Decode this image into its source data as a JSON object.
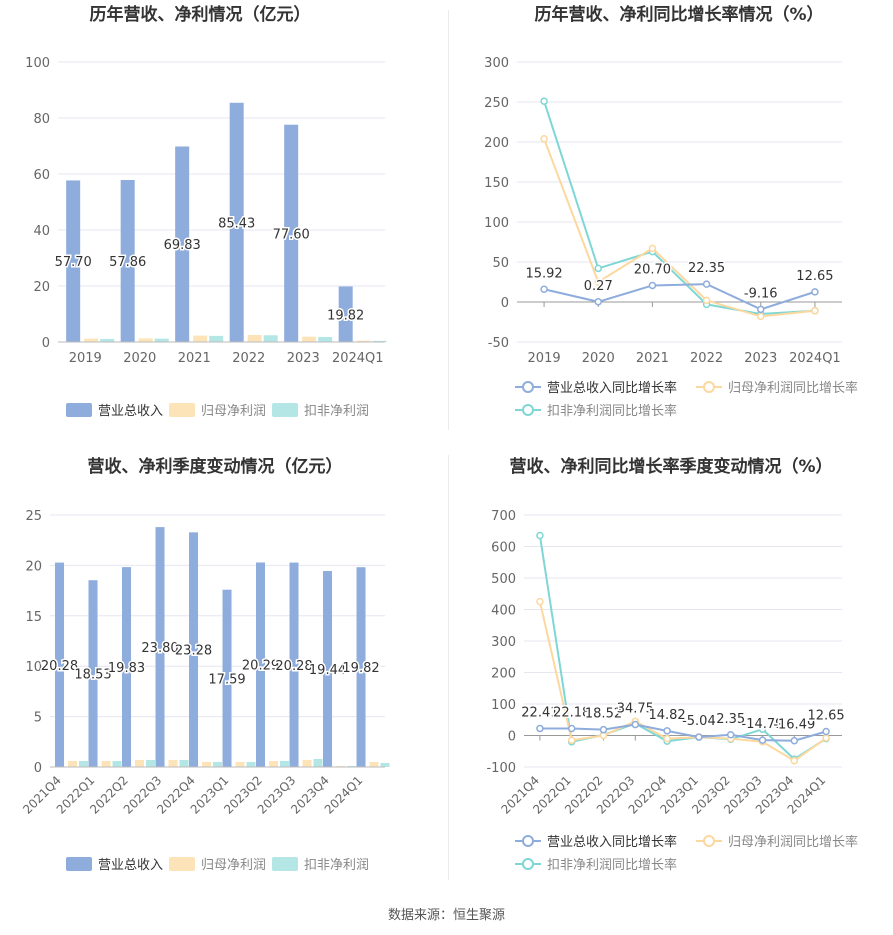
{
  "colors": {
    "revenue": "#8eacdc",
    "net_profit": "#fde4b8",
    "deducted_profit": "#b4e6e6",
    "revenue_line": "#8eacdc",
    "net_line": "#fcd89e",
    "deducted_line": "#7fd6d6"
  },
  "footer": {
    "source": "数据来源：恒生聚源"
  },
  "chart_data": [
    {
      "type": "bar",
      "title": "历年营收、净利情况（亿元）",
      "categories": [
        "2019",
        "2020",
        "2021",
        "2022",
        "2023",
        "2024Q1"
      ],
      "ylim": [
        0,
        100
      ],
      "yticks": [
        0,
        20,
        40,
        60,
        80,
        100
      ],
      "series": [
        {
          "name": "营业总收入",
          "values": [
            57.7,
            57.86,
            69.83,
            85.43,
            77.6,
            19.82
          ],
          "labels": [
            "57.70",
            "57.86",
            "69.83",
            "85.43",
            "77.60",
            "19.82"
          ]
        },
        {
          "name": "归母净利润",
          "values": [
            1.2,
            1.3,
            2.3,
            2.5,
            1.9,
            0.5
          ]
        },
        {
          "name": "扣非净利润",
          "values": [
            1.1,
            1.2,
            2.2,
            2.4,
            1.8,
            0.4
          ]
        }
      ],
      "legend": "bottom"
    },
    {
      "type": "line",
      "title": "历年营收、净利同比增长率情况（%）",
      "categories": [
        "2019",
        "2020",
        "2021",
        "2022",
        "2023",
        "2024Q1"
      ],
      "ylim": [
        -50,
        300
      ],
      "yticks": [
        -50,
        0,
        50,
        100,
        150,
        200,
        250,
        300
      ],
      "series": [
        {
          "name": "营业总收入同比增长率",
          "values": [
            15.92,
            0.27,
            20.7,
            22.35,
            -9.16,
            12.65
          ],
          "labels": [
            "15.92",
            "0.27",
            "20.70",
            "22.35",
            "-9.16",
            "12.65"
          ]
        },
        {
          "name": "归母净利润同比增长率",
          "values": [
            204,
            25,
            67,
            2,
            -18,
            -11
          ]
        },
        {
          "name": "扣非净利润同比增长率",
          "values": [
            251,
            42,
            63,
            -3,
            -15,
            -11
          ]
        }
      ],
      "legend": "bottom"
    },
    {
      "type": "bar",
      "title": "营收、净利季度变动情况（亿元）",
      "categories": [
        "2021Q4",
        "2022Q1",
        "2022Q2",
        "2022Q3",
        "2022Q4",
        "2023Q1",
        "2023Q2",
        "2023Q3",
        "2023Q4",
        "2024Q1"
      ],
      "ylim": [
        0,
        25
      ],
      "yticks": [
        0,
        5,
        10,
        15,
        20,
        25
      ],
      "series": [
        {
          "name": "营业总收入",
          "values": [
            20.28,
            18.53,
            19.83,
            23.8,
            23.28,
            17.59,
            20.29,
            20.28,
            19.44,
            19.82
          ],
          "labels": [
            "20.28",
            "18.53",
            "19.83",
            "23.80",
            "23.28",
            "17.59",
            "20.29",
            "20.28",
            "19.44",
            "19.82"
          ]
        },
        {
          "name": "归母净利润",
          "values": [
            0.6,
            0.6,
            0.7,
            0.7,
            0.5,
            0.5,
            0.6,
            0.7,
            0.1,
            0.5
          ]
        },
        {
          "name": "扣非净利润",
          "values": [
            0.6,
            0.6,
            0.7,
            0.7,
            0.5,
            0.5,
            0.6,
            0.8,
            0.1,
            0.4
          ]
        }
      ],
      "legend": "bottom"
    },
    {
      "type": "line",
      "title": "营收、净利同比增长率季度变动情况（%）",
      "categories": [
        "2021Q4",
        "2022Q1",
        "2022Q2",
        "2022Q3",
        "2022Q4",
        "2023Q1",
        "2023Q2",
        "2023Q3",
        "2023Q4",
        "2024Q1"
      ],
      "ylim": [
        -100,
        700
      ],
      "yticks": [
        -100,
        0,
        100,
        200,
        300,
        400,
        500,
        600,
        700
      ],
      "series": [
        {
          "name": "营业总收入同比增长率",
          "values": [
            22.41,
            22.18,
            18.52,
            34.75,
            14.82,
            -5.04,
            2.35,
            -14.79,
            -16.49,
            12.65
          ],
          "labels": [
            "22.41",
            "22.18",
            "18.52",
            "34.75",
            "14.82",
            "-5.04",
            "2.35",
            "-14.79",
            "-16.49",
            "12.65"
          ]
        },
        {
          "name": "归母净利润同比增长率",
          "values": [
            425,
            -15,
            0,
            45,
            -10,
            -5,
            -10,
            -20,
            -80,
            -8
          ]
        },
        {
          "name": "扣非净利润同比增长率",
          "values": [
            635,
            -20,
            2,
            38,
            -18,
            -5,
            -12,
            20,
            -75,
            -10
          ]
        }
      ],
      "legend": "bottom"
    }
  ]
}
